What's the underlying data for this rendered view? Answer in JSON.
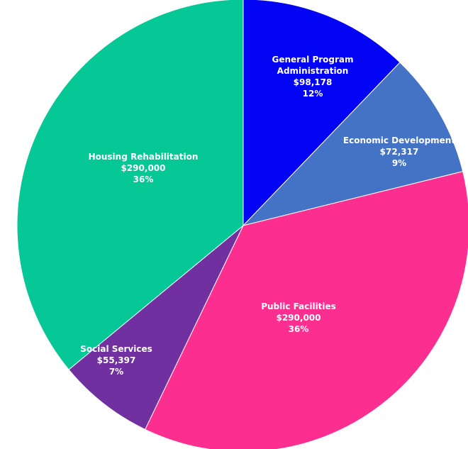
{
  "chart_data": {
    "type": "pie",
    "title": "",
    "start_angle_deg": 0,
    "direction": "clockwise",
    "slices": [
      {
        "name_lines": [
          "General Program",
          "Administration"
        ],
        "value": 98178,
        "value_label": "$98,178",
        "percent_label": "12%",
        "color": "#0404f5"
      },
      {
        "name_lines": [
          "Economic Development"
        ],
        "value": 72317,
        "value_label": "$72,317",
        "percent_label": "9%",
        "color": "#4472c4"
      },
      {
        "name_lines": [
          "Public Facilities"
        ],
        "value": 290000,
        "value_label": "$290,000",
        "percent_label": "36%",
        "color": "#fc2e8f"
      },
      {
        "name_lines": [
          "Social Services"
        ],
        "value": 55397,
        "value_label": "$55,397",
        "percent_label": "7%",
        "color": "#7030a0"
      },
      {
        "name_lines": [
          "Housing Rehabilitation"
        ],
        "value": 290000,
        "value_label": "$290,000",
        "percent_label": "36%",
        "color": "#05c896"
      }
    ]
  }
}
